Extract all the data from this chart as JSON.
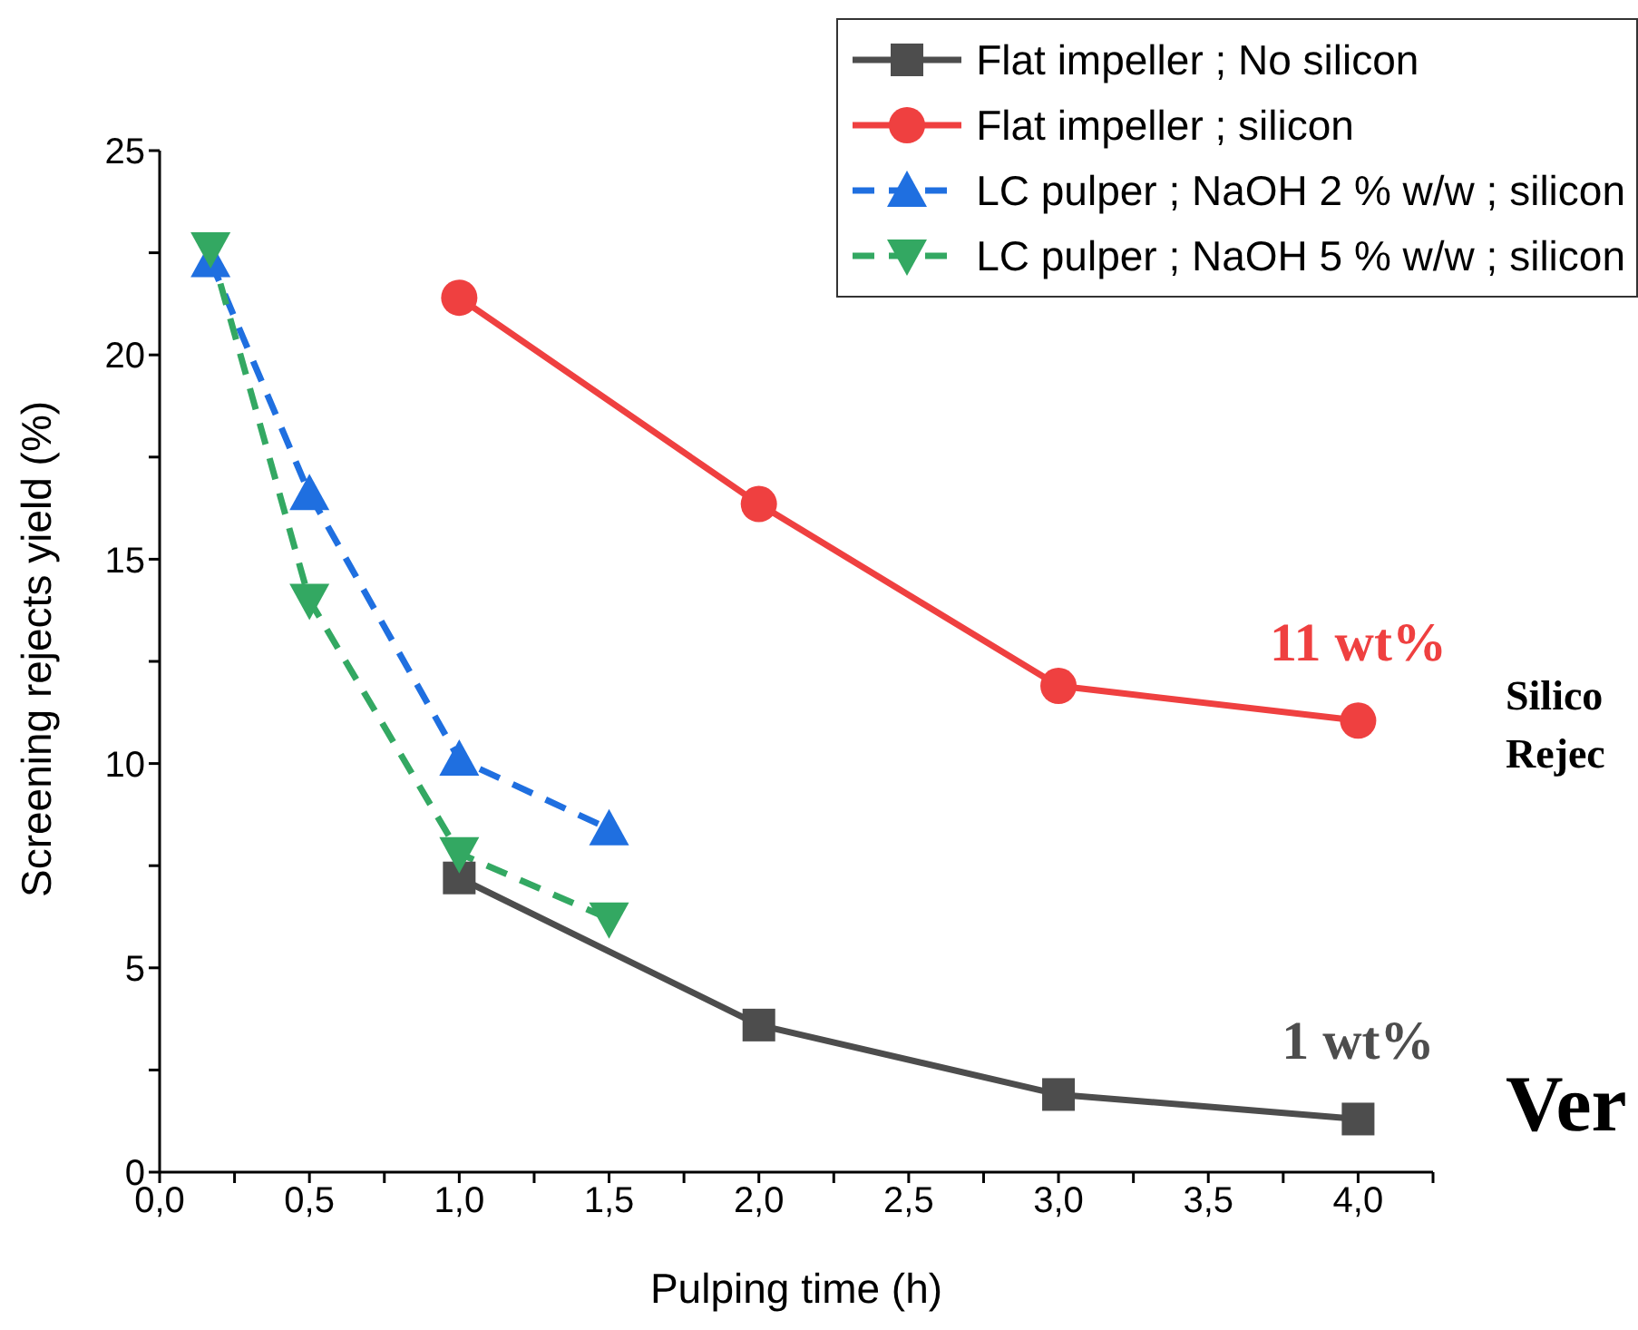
{
  "chart_data": {
    "type": "line",
    "xlabel": "Pulping time (h)",
    "ylabel": "Screening rejects yield (%)",
    "xlim": [
      0,
      4.25
    ],
    "xticks": [
      {
        "value": 0,
        "label": "0,0"
      },
      {
        "value": 0.25,
        "label": null
      },
      {
        "value": 0.5,
        "label": "0,5"
      },
      {
        "value": 0.75,
        "label": null
      },
      {
        "value": 1,
        "label": "1,0"
      },
      {
        "value": 1.25,
        "label": null
      },
      {
        "value": 1.5,
        "label": "1,5"
      },
      {
        "value": 1.75,
        "label": null
      },
      {
        "value": 2,
        "label": "2,0"
      },
      {
        "value": 2.25,
        "label": null
      },
      {
        "value": 2.5,
        "label": "2,5"
      },
      {
        "value": 2.75,
        "label": null
      },
      {
        "value": 3,
        "label": "3,0"
      },
      {
        "value": 3.25,
        "label": null
      },
      {
        "value": 3.5,
        "label": "3,5"
      },
      {
        "value": 3.75,
        "label": null
      },
      {
        "value": 4,
        "label": "4,0"
      },
      {
        "value": 4.25,
        "label": null
      }
    ],
    "ylim": [
      0,
      25
    ],
    "yticks": [
      0,
      {
        "value": 2.5,
        "label": null
      },
      5,
      {
        "value": 7.5,
        "label": null
      },
      10,
      {
        "value": 12.5,
        "label": null
      },
      15,
      {
        "value": 17.5,
        "label": null
      },
      20,
      {
        "value": 22.5,
        "label": null
      },
      25
    ],
    "legend": "top right",
    "series": [
      {
        "name": "Flat impeller ; No silicon",
        "color": "#4d4d4d",
        "marker": "square",
        "line_style": "solid",
        "x": [
          1,
          2,
          3,
          4
        ],
        "values": [
          7.2,
          3.6,
          1.9,
          1.3
        ]
      },
      {
        "name": "Flat impeller ; silicon",
        "color": "#ef4040",
        "marker": "circle",
        "line_style": "solid",
        "x": [
          1,
          2,
          3,
          4
        ],
        "values": [
          21.4,
          16.35,
          11.9,
          11.05
        ]
      },
      {
        "name": "LC pulper ; NaOH 2 % w/w ; silicon",
        "color": "#1f6fe0",
        "marker": "triangle",
        "line_style": "dashed",
        "x": [
          0.17,
          0.5,
          1,
          1.5
        ],
        "values": [
          22.3,
          16.6,
          10.1,
          8.4
        ]
      },
      {
        "name": "LC pulper ; NaOH 5 % w/w ; silicon",
        "color": "#33a862",
        "marker": "triangle-down",
        "line_style": "dashed",
        "x": [
          0.17,
          0.5,
          1,
          1.5
        ],
        "values": [
          22.6,
          14.0,
          7.8,
          6.2
        ]
      }
    ],
    "annotations": [
      {
        "text": "11 wt%",
        "x": 4,
        "y": 11.05
      },
      {
        "text": "1 wt%",
        "x": 4,
        "y": 1.3
      },
      "Silico\nRejec",
      "Ver"
    ]
  }
}
